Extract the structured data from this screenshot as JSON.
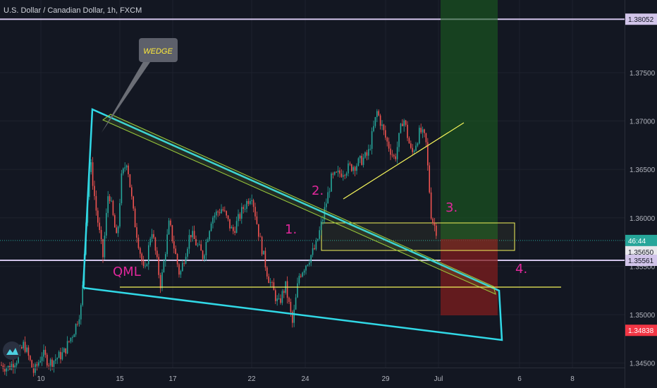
{
  "header": {
    "symbol_title": "U.S. Dollar / Canadian Dollar, 1h, FXCM"
  },
  "chart_data": {
    "type": "candlestick",
    "ylim": [
      1.3435,
      1.3817
    ],
    "y_ticks": [
      "1.34500",
      "1.35000",
      "1.35500",
      "1.36000",
      "1.36500",
      "1.37000",
      "1.37500"
    ],
    "x_ticks": [
      "10",
      "15",
      "17",
      "22",
      "24",
      "29",
      "Jul",
      "6",
      "8"
    ],
    "price_tags": [
      {
        "label": "1.38052",
        "value": 1.38052,
        "color": "#d1c4e9",
        "text_color": "#131722"
      },
      {
        "label": "46:44",
        "value": 1.35766,
        "color": "#26a69a",
        "text_color": "#ffffff"
      },
      {
        "label": "1.35650",
        "value": 1.3565,
        "color": "#e8e8ec",
        "text_color": "#131722"
      },
      {
        "label": "1.35561",
        "value": 1.35561,
        "color": "#d1c4e9",
        "text_color": "#131722"
      },
      {
        "label": "1.34838",
        "value": 1.34838,
        "color": "#f23645",
        "text_color": "#ffffff"
      }
    ],
    "horizontal_lines": [
      1.38052,
      1.35561
    ],
    "current_price": 1.35766,
    "candles_summary": [
      {
        "date": "10",
        "low": 1.3435,
        "high": 1.3475
      },
      {
        "date": "12",
        "low": 1.3505,
        "high": 1.369
      },
      {
        "date": "15",
        "low": 1.3535,
        "high": 1.369
      },
      {
        "date": "17",
        "low": 1.3515,
        "high": 1.364
      },
      {
        "date": "22",
        "low": 1.353,
        "high": 1.363
      },
      {
        "date": "23",
        "low": 1.3487,
        "high": 1.356
      },
      {
        "date": "24",
        "low": 1.3535,
        "high": 1.3615
      },
      {
        "date": "29",
        "low": 1.364,
        "high": 1.3715
      },
      {
        "date": "30",
        "low": 1.3577,
        "high": 1.3703
      }
    ],
    "annotations": {
      "callout": "WEDGE",
      "qml": "QML",
      "n1": "1.",
      "n2": "2.",
      "n3": "3.",
      "n4": "4."
    },
    "position_tool": {
      "entry": 1.3565,
      "target": 1.381,
      "stop": 1.34838
    }
  },
  "colors": {
    "background": "#131722",
    "up": "#26a69a",
    "down": "#ef5350",
    "wedge": "#31d8e6",
    "yellow": "#f3f35a",
    "magenta": "#e0279b",
    "profit": "#1b5e20",
    "loss": "#7f1d1d"
  },
  "icons": [
    "tradingview-logo-icon"
  ]
}
